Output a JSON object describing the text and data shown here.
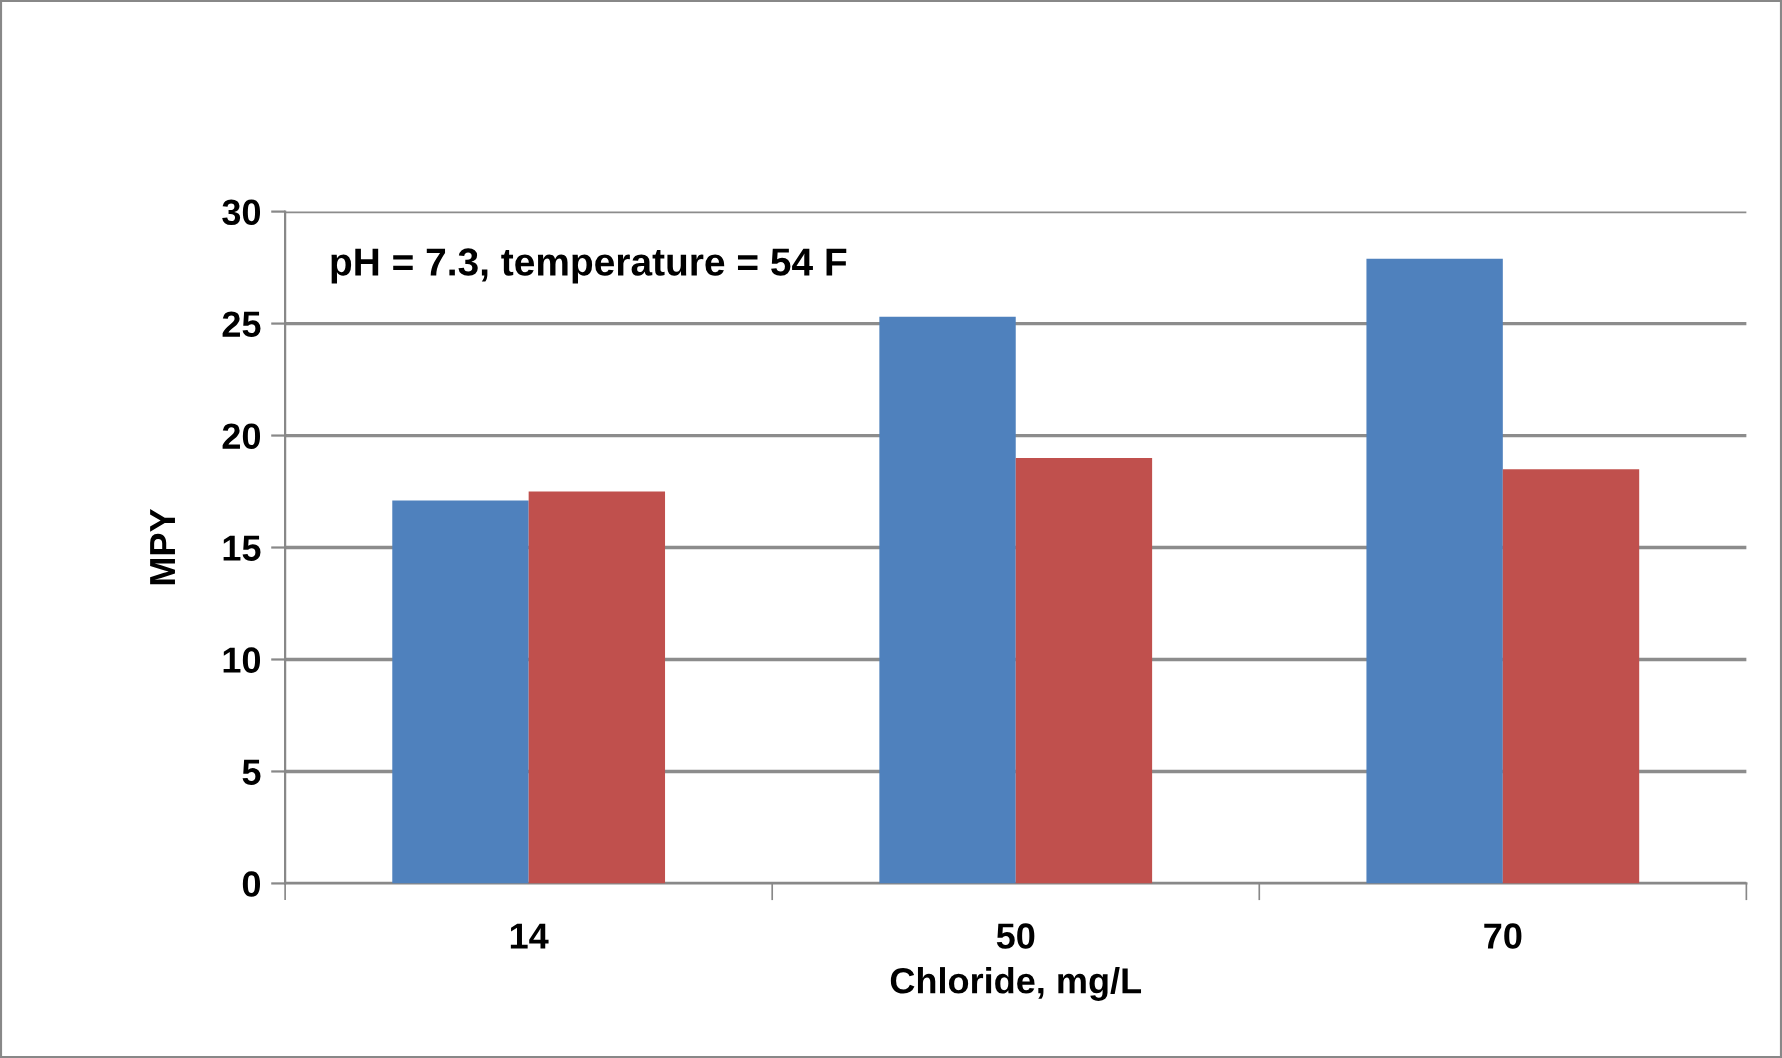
{
  "chart_data": {
    "type": "bar",
    "xlabel": "Chloride, mg/L",
    "ylabel": "MPY",
    "categories": [
      "14",
      "50",
      "70"
    ],
    "series": [
      {
        "color": "#4f81bd",
        "values": [
          17.1,
          25.3,
          27.9
        ]
      },
      {
        "color": "#c0504d",
        "values": [
          17.5,
          19.0,
          18.5
        ]
      }
    ],
    "ylim": [
      0,
      30
    ],
    "yticks": [
      0,
      5,
      10,
      15,
      20,
      25,
      30
    ],
    "grid": "y",
    "annotations": [
      "pH = 7.3, temperature = 54 F"
    ]
  }
}
